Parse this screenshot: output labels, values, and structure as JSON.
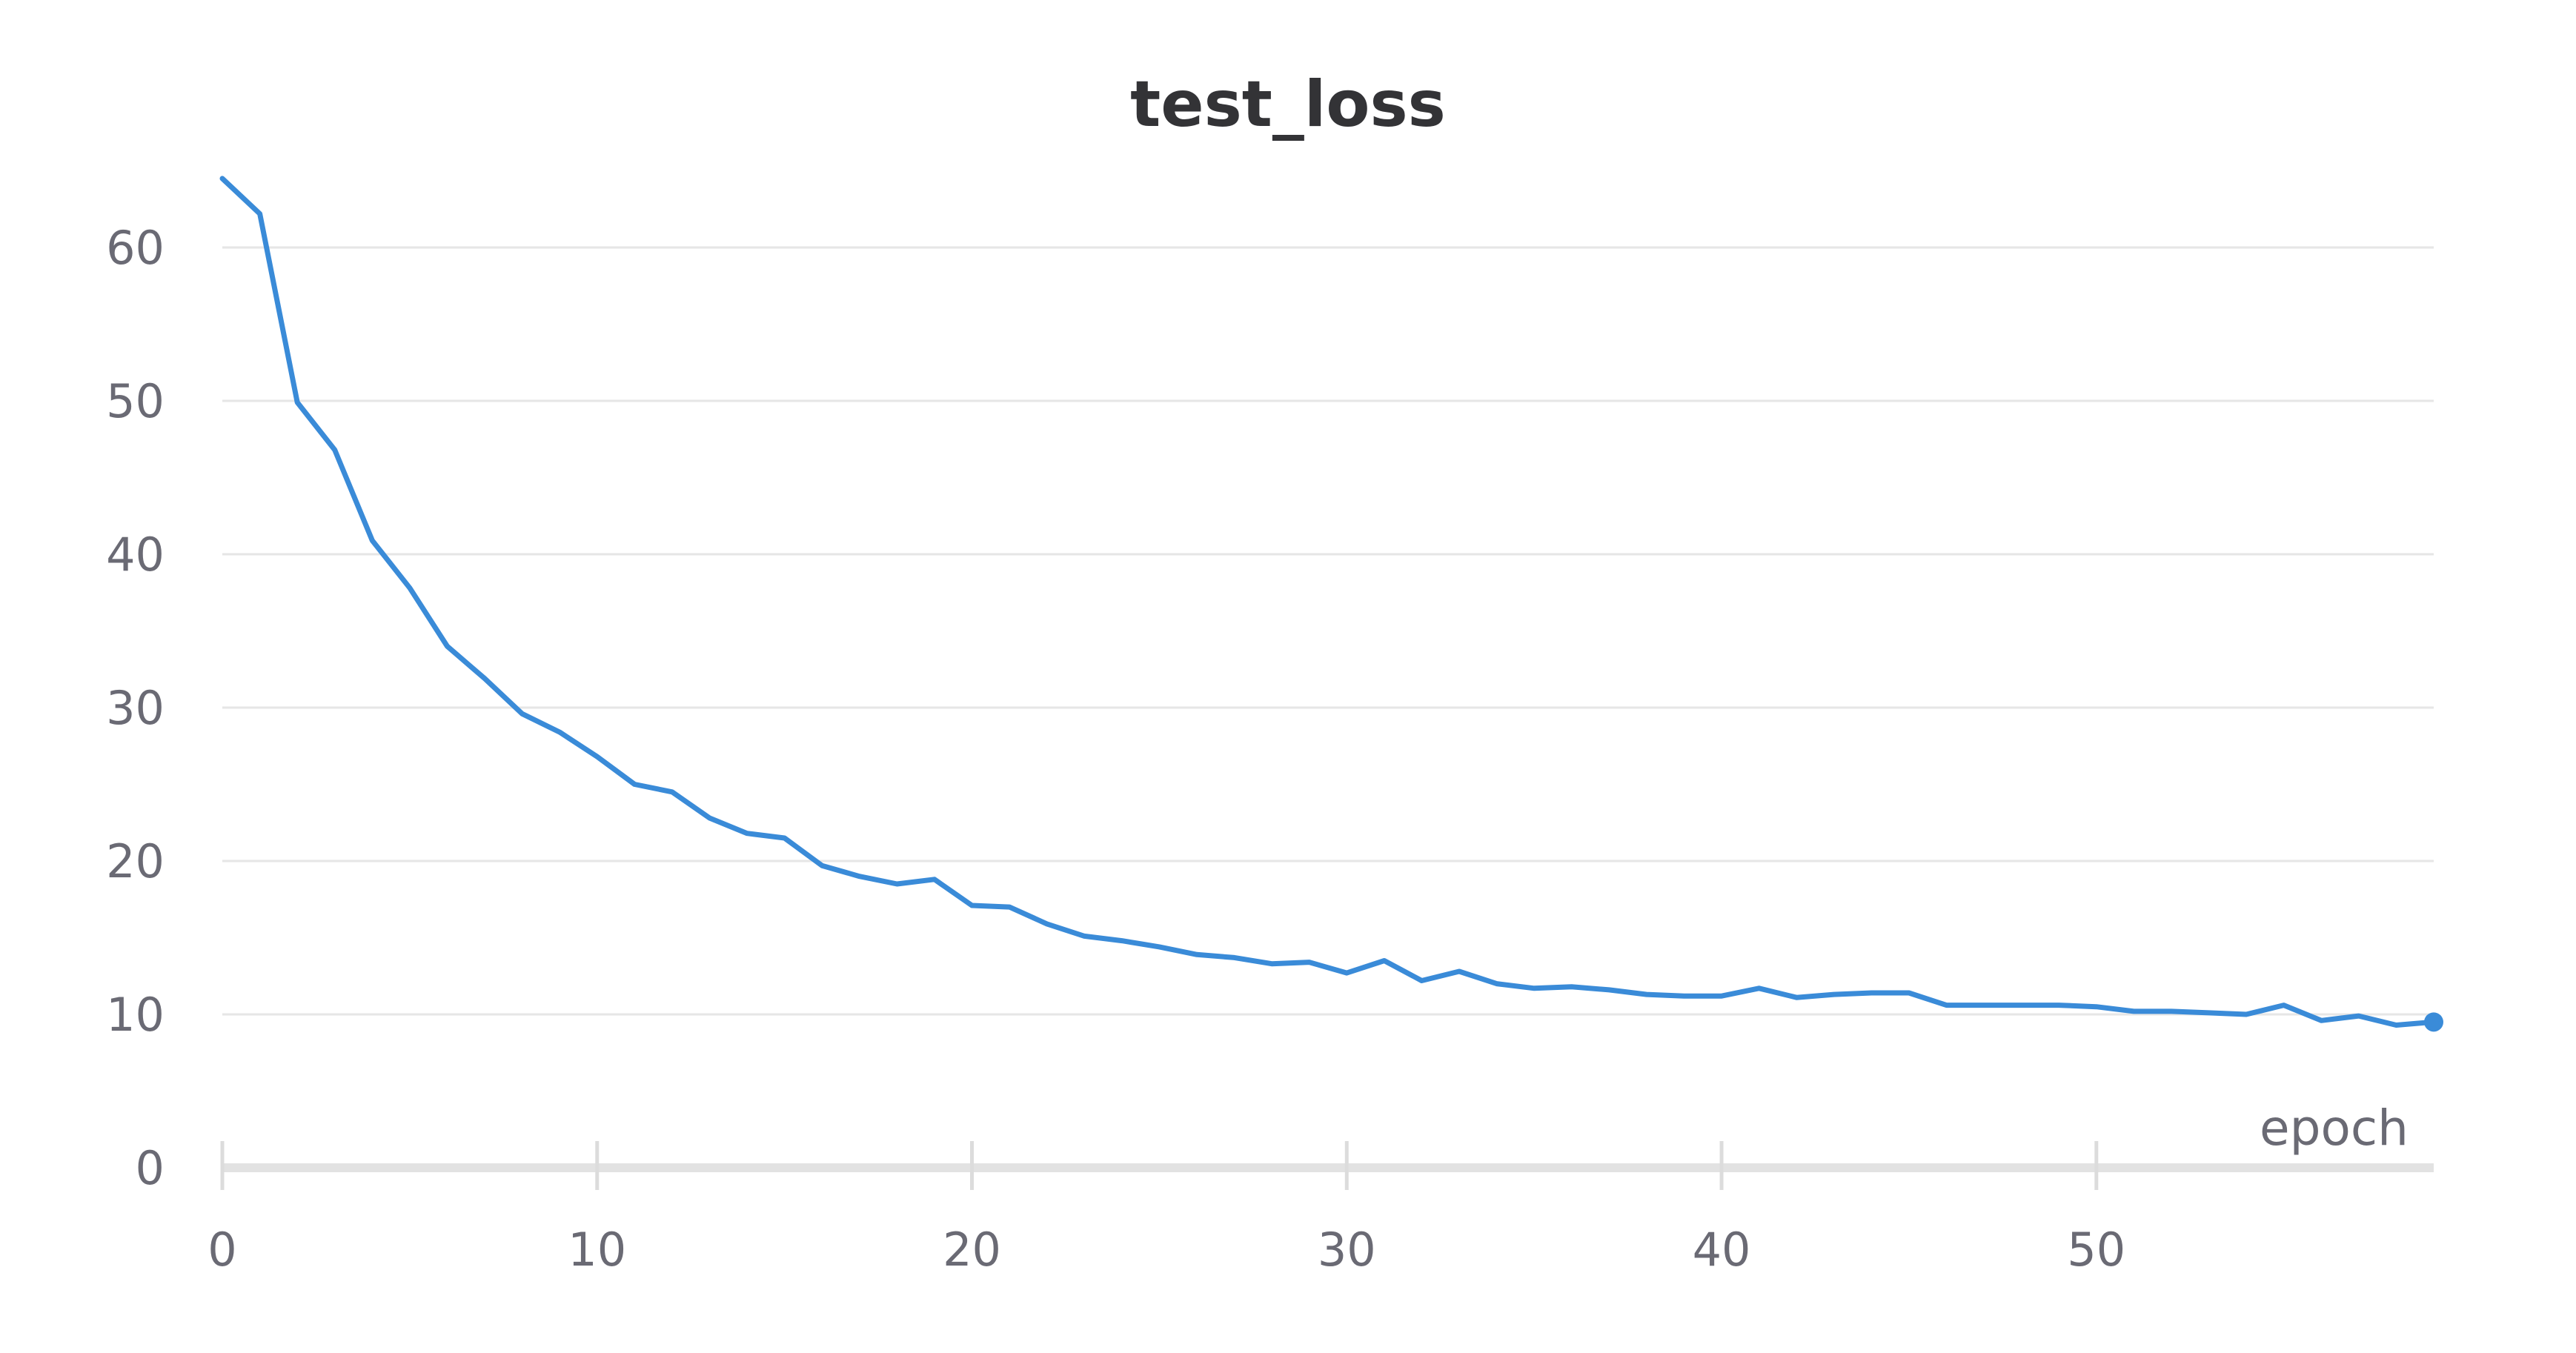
{
  "chart_data": {
    "type": "line",
    "title": "test_loss",
    "xlabel": "epoch",
    "ylabel": "",
    "xlim": [
      0,
      59
    ],
    "ylim": [
      0,
      66
    ],
    "x_ticks": [
      0,
      10,
      20,
      30,
      40,
      50
    ],
    "y_ticks": [
      0,
      10,
      20,
      30,
      40,
      50,
      60
    ],
    "grid": "horizontal",
    "color": "#3a8bd8",
    "series": [
      {
        "x": [
          0,
          1,
          2,
          3,
          4,
          5,
          6,
          7,
          8,
          9,
          10,
          11,
          12,
          13,
          14,
          15,
          16,
          17,
          18,
          19,
          20,
          21,
          22,
          23,
          24,
          25,
          26,
          27,
          28,
          29,
          30,
          31,
          32,
          33,
          34,
          35,
          36,
          37,
          38,
          39,
          40,
          41,
          42,
          43,
          44,
          45,
          46,
          47,
          48,
          49,
          50,
          51,
          52,
          53,
          54,
          55,
          56,
          57,
          58,
          59
        ],
        "values": [
          64.5,
          62.2,
          49.9,
          46.8,
          40.9,
          37.8,
          34.0,
          31.9,
          29.6,
          28.4,
          26.8,
          25.0,
          24.5,
          22.8,
          21.8,
          21.5,
          19.7,
          19.0,
          18.5,
          18.8,
          17.1,
          17.0,
          15.9,
          15.1,
          14.8,
          14.4,
          13.9,
          13.7,
          13.3,
          13.4,
          12.7,
          13.5,
          12.2,
          12.8,
          12.0,
          11.7,
          11.8,
          11.6,
          11.3,
          11.2,
          11.2,
          11.7,
          11.1,
          11.3,
          11.4,
          11.4,
          10.6,
          10.6,
          10.6,
          10.6,
          10.5,
          10.2,
          10.2,
          10.1,
          10.0,
          10.6,
          9.6,
          9.9,
          9.3,
          9.5
        ]
      }
    ]
  }
}
